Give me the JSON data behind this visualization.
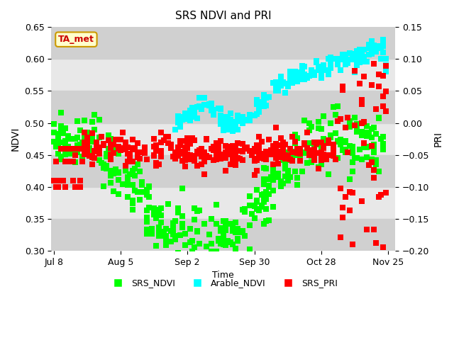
{
  "title": "SRS NDVI and PRI",
  "xlabel": "Time",
  "ylabel_left": "NDVI",
  "ylabel_right": "PRI",
  "ylim_left": [
    0.3,
    0.65
  ],
  "ylim_right": [
    -0.2,
    0.15
  ],
  "annotation_text": "TA_met",
  "annotation_color": "#cc0000",
  "annotation_bg": "#ffffcc",
  "annotation_border": "#cc9900",
  "series_colors": {
    "SRS_NDVI": "#00ff00",
    "Arable_NDVI": "#00ffff",
    "SRS_PRI": "#ff0000"
  },
  "legend_labels": [
    "SRS_NDVI",
    "Arable_NDVI",
    "SRS_PRI"
  ],
  "marker_size": 6,
  "bg_axes_color": "#e8e8e8",
  "bg_band_color": "#d0d0d0",
  "x_tick_labels": [
    "Jul 8",
    "Aug 5",
    "Sep 2",
    "Sep 30",
    "Oct 28",
    "Nov 25"
  ]
}
